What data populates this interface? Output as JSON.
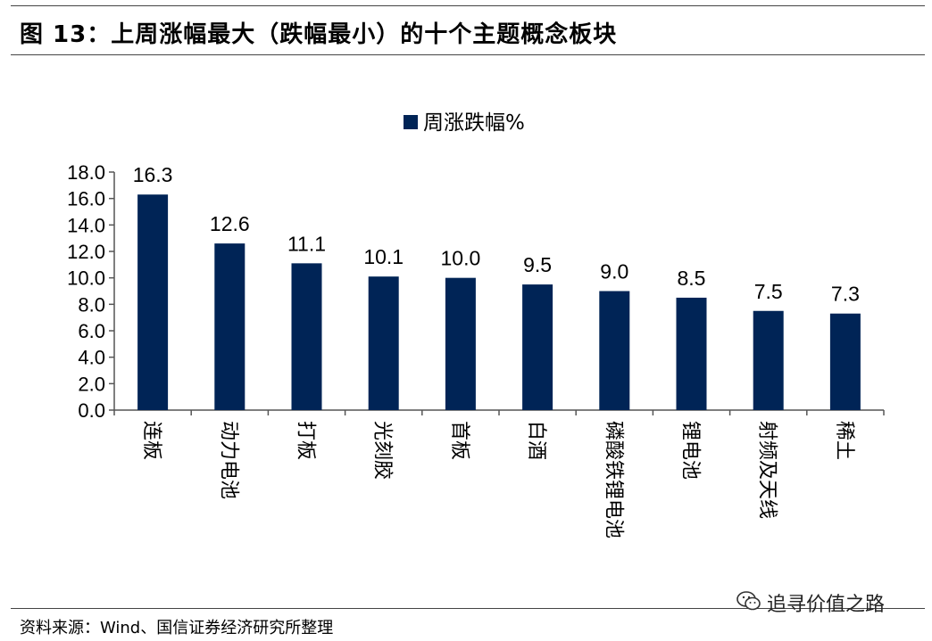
{
  "figure": {
    "title": "图  13：上周涨幅最大（跌幅最小）的十个主题概念板块",
    "source": "资料来源：Wind、国信证券经济研究所整理",
    "watermark": "追寻价值之路",
    "watermark_icon": "wechat-icon"
  },
  "chart_data": {
    "type": "bar",
    "categories": [
      "连板",
      "动力电池",
      "打板",
      "光刻胶",
      "首板",
      "白酒",
      "磷酸铁锂电池",
      "锂电池",
      "射频及天线",
      "稀土"
    ],
    "series": [
      {
        "name": "周涨跌幅%",
        "values": [
          16.3,
          12.6,
          11.1,
          10.1,
          10.0,
          9.5,
          9.0,
          8.5,
          7.5,
          7.3
        ],
        "labels": [
          "16.3",
          "12.6",
          "11.1",
          "10.1",
          "10.0",
          "9.5",
          "9.0",
          "8.5",
          "7.5",
          "7.3"
        ],
        "color": "#002456"
      }
    ],
    "title": "",
    "xlabel": "",
    "ylabel": "",
    "ylim": [
      0,
      18
    ],
    "yticks": [
      "0.0",
      "2.0",
      "4.0",
      "6.0",
      "8.0",
      "10.0",
      "12.0",
      "14.0",
      "16.0",
      "18.0"
    ],
    "grid": false,
    "legend_position": "top-center"
  }
}
